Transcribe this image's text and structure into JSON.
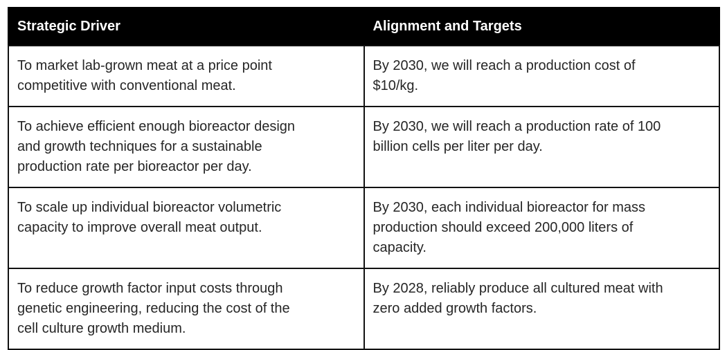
{
  "table": {
    "columns": [
      {
        "label": "Strategic Driver"
      },
      {
        "label": "Alignment and Targets"
      }
    ],
    "rows": [
      {
        "driver": "To market lab-grown meat at a price point\ncompetitive with conventional meat.",
        "target": "By 2030, we will reach a production cost of\n$10/kg."
      },
      {
        "driver": "To achieve efficient enough bioreactor design\nand growth techniques for a sustainable\nproduction rate per bioreactor per day.",
        "target": "By 2030, we will reach a production rate of 100\nbillion cells per liter per day."
      },
      {
        "driver": "To scale up individual bioreactor volumetric\ncapacity to improve overall meat output.",
        "target": "By 2030, each individual bioreactor for mass\nproduction should exceed 200,000 liters of\ncapacity."
      },
      {
        "driver": "To reduce growth factor input costs through\ngenetic engineering, reducing the cost of the\ncell culture growth medium.",
        "target": "By 2028, reliably produce all cultured meat with\nzero added growth factors."
      }
    ]
  },
  "colors": {
    "header_bg": "#000000",
    "header_text": "#ffffff",
    "body_text": "#262626",
    "border": "#111111",
    "page_bg": "#ffffff"
  }
}
